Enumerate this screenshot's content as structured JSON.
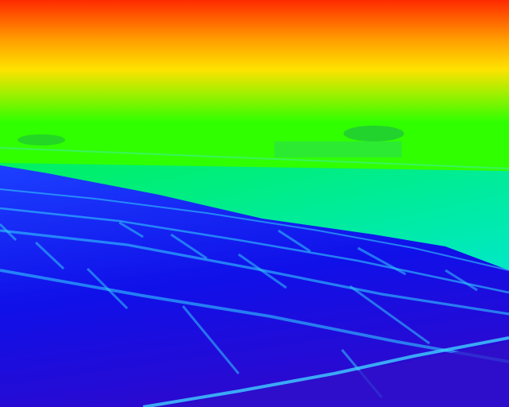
{
  "image": {
    "kind": "thermal-false-color-photo",
    "subject": "solar-panel-array",
    "palette": {
      "hot": "#ff2a00",
      "warm": "#ffa000",
      "mid_yellow": "#ffe200",
      "mid_green": "#30ff00",
      "cool_green": "#00f060",
      "cyan": "#00e8c8",
      "panel_blue": "#1c40ff",
      "panel_deep": "#1010e8",
      "panel_darkest": "#2a0ad0",
      "frame_cyan": "#30c8ff"
    }
  }
}
